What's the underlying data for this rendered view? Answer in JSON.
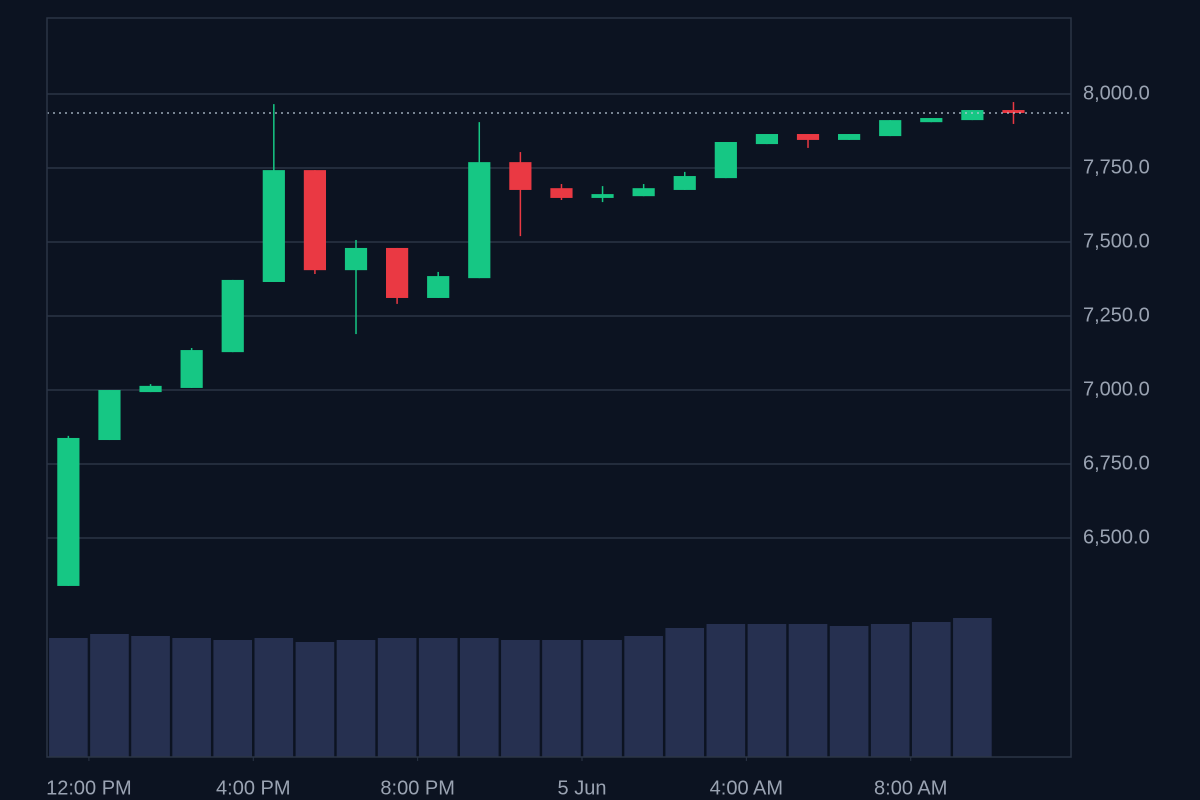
{
  "chart_data": {
    "type": "candlestick",
    "x": [
      11.5,
      12.5,
      13.5,
      14.5,
      15.5,
      16.5,
      17.5,
      18.5,
      19.5,
      20.5,
      21.5,
      22.5,
      23.5,
      24.5,
      25.5,
      26.5,
      27.5,
      28.5,
      29.5,
      30.5,
      31.5,
      32.5,
      33.5,
      34.5
    ],
    "open": [
      6338,
      6831,
      6993,
      7007,
      7128,
      7365,
      7743,
      7405,
      7480,
      7311,
      7378,
      7770,
      7682,
      7649,
      7655,
      7676,
      7716,
      7831,
      7865,
      7845,
      7858,
      7905,
      7912,
      7946
    ],
    "high": [
      6845,
      7000,
      7020,
      7142,
      7372,
      7966,
      7743,
      7507,
      7480,
      7399,
      7905,
      7804,
      7696,
      7689,
      7696,
      7737,
      7838,
      7865,
      7865,
      7865,
      7912,
      7919,
      7946,
      7973
    ],
    "low": [
      6338,
      6831,
      6993,
      7007,
      7128,
      7365,
      7392,
      7189,
      7291,
      7311,
      7378,
      7520,
      7642,
      7635,
      7655,
      7676,
      7716,
      7831,
      7818,
      7845,
      7858,
      7905,
      7912,
      7899
    ],
    "close": [
      6838,
      7000,
      7014,
      7135,
      7372,
      7743,
      7405,
      7480,
      7311,
      7385,
      7770,
      7676,
      7649,
      7662,
      7682,
      7723,
      7838,
      7865,
      7845,
      7865,
      7912,
      7919,
      7946,
      7936
    ],
    "volume": [
      119,
      123,
      121,
      119,
      117,
      119,
      115,
      117,
      119,
      119,
      119,
      117,
      117,
      117,
      121,
      129,
      133,
      133,
      133,
      131,
      133,
      135,
      139,
      null
    ],
    "xlim": [
      10.98,
      35.9
    ],
    "xticks": [
      {
        "value": 12,
        "label": "12:00 PM"
      },
      {
        "value": 16,
        "label": "4:00 PM"
      },
      {
        "value": 20,
        "label": "8:00 PM"
      },
      {
        "value": 24,
        "label": "5 Jun"
      },
      {
        "value": 28,
        "label": "4:00 AM"
      },
      {
        "value": 32,
        "label": "8:00 AM"
      }
    ],
    "ylim": [
      5760,
      8257
    ],
    "yticks": [
      {
        "value": 6500,
        "label": "6,500.0"
      },
      {
        "value": 6750,
        "label": "6,750.0"
      },
      {
        "value": 7000,
        "label": "7,000.0"
      },
      {
        "value": 7250,
        "label": "7,250.0"
      },
      {
        "value": 7500,
        "label": "7,500.0"
      },
      {
        "value": 7750,
        "label": "7,750.0"
      },
      {
        "value": 8000,
        "label": "8,000.0"
      }
    ],
    "grid": true,
    "up_color": "#16c784",
    "down_color": "#ea3943",
    "volume_color": "#263050"
  }
}
